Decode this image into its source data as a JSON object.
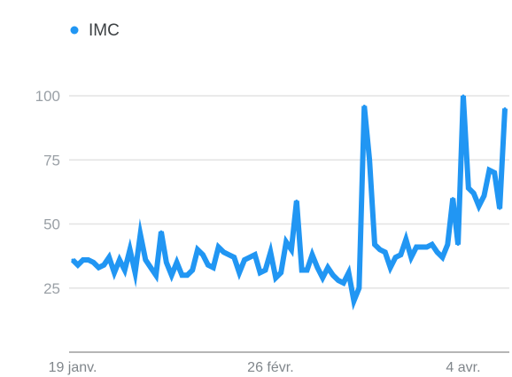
{
  "chart_data": {
    "type": "line",
    "title": "",
    "xlabel": "",
    "ylabel": "",
    "ylim": [
      0,
      100
    ],
    "y_ticks": [
      25,
      50,
      75,
      100
    ],
    "x_tick_labels": [
      "19 janv.",
      "26 févr.",
      "4 avr."
    ],
    "x_tick_index": [
      0,
      38,
      75
    ],
    "grid": true,
    "legend_position": "top-left",
    "series": [
      {
        "name": "IMC",
        "color": "#2196f3",
        "values": [
          36,
          34,
          36,
          36,
          35,
          33,
          34,
          37,
          31,
          36,
          32,
          40,
          31,
          46,
          36,
          33,
          30,
          47,
          35,
          30,
          35,
          30,
          30,
          32,
          40,
          38,
          34,
          33,
          41,
          39,
          38,
          37,
          31,
          36,
          37,
          38,
          31,
          32,
          39,
          29,
          31,
          43,
          40,
          59,
          32,
          32,
          38,
          33,
          29,
          33,
          30,
          28,
          27,
          31,
          20,
          25,
          96,
          75,
          42,
          40,
          39,
          33,
          37,
          38,
          44,
          37,
          41,
          41,
          41,
          42,
          39,
          37,
          42,
          60,
          42,
          100,
          64,
          62,
          57,
          61,
          71,
          70,
          56,
          95
        ]
      }
    ]
  }
}
